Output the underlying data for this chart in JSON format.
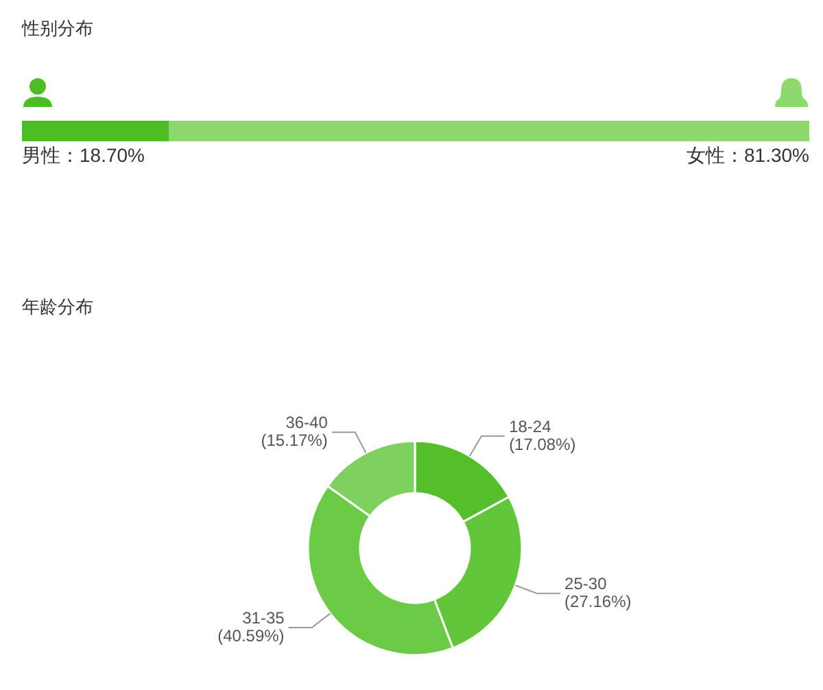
{
  "chart_data": [
    {
      "type": "bar",
      "title": "性别分布",
      "orientation": "horizontal",
      "stacked": true,
      "categories": [
        null
      ],
      "series": [
        {
          "color": "#4dbd24",
          "values": [
            18.7
          ],
          "value_labels": [
            "男性：18.70%"
          ]
        },
        {
          "color": "#8ed96e",
          "values": [
            81.3
          ],
          "value_labels": [
            "女性：81.30%"
          ]
        }
      ]
    },
    {
      "type": "donut",
      "title": "年龄分布",
      "categories": [
        "18-24",
        "25-30",
        "31-35",
        "36-40"
      ],
      "values": [
        17.08,
        27.16,
        40.59,
        15.17
      ],
      "colors": [
        "#55bf2b",
        "#62c63a",
        "#6ccb46",
        "#7ed15e"
      ],
      "value_labels": [
        "(17.08%)",
        "(27.16%)",
        "(40.59%)",
        "(15.17%)"
      ]
    }
  ]
}
